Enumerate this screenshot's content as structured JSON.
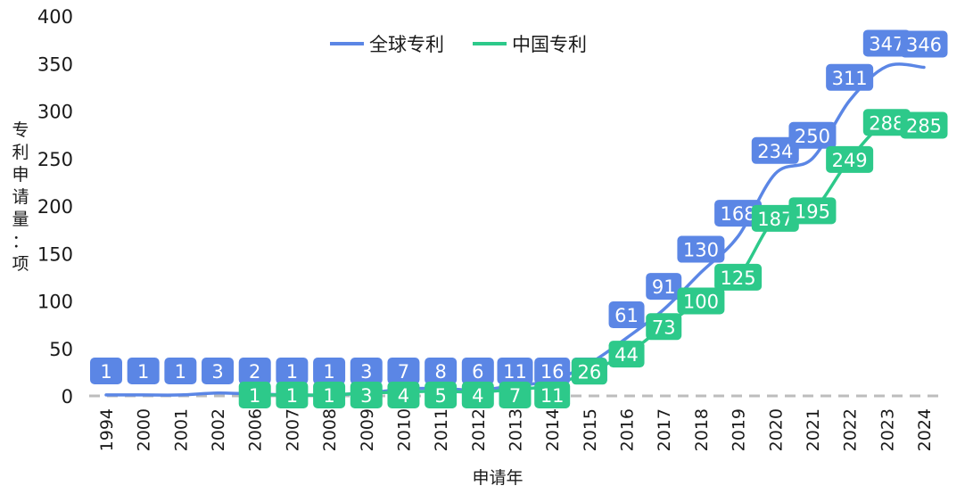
{
  "chart_data": {
    "type": "line",
    "categories": [
      "1994",
      "2000",
      "2001",
      "2002",
      "2006",
      "2007",
      "2008",
      "2009",
      "2010",
      "2011",
      "2012",
      "2013",
      "2014",
      "2015",
      "2016",
      "2017",
      "2018",
      "2019",
      "2020",
      "2021",
      "2022",
      "2023",
      "2024"
    ],
    "series": [
      {
        "name": "全球专利",
        "color": "#5b86e5",
        "values": [
          1,
          1,
          1,
          3,
          2,
          1,
          1,
          3,
          7,
          8,
          6,
          11,
          16,
          34,
          61,
          91,
          130,
          168,
          234,
          250,
          311,
          347,
          346
        ]
      },
      {
        "name": "中国专利",
        "color": "#2dc98a",
        "values": [
          null,
          null,
          null,
          null,
          1,
          1,
          1,
          3,
          4,
          5,
          4,
          7,
          11,
          26,
          44,
          73,
          100,
          125,
          187,
          195,
          249,
          288,
          285
        ]
      }
    ],
    "ylim": [
      0,
      400
    ],
    "yticks": [
      "0",
      "50",
      "100",
      "150",
      "200",
      "250",
      "300",
      "350",
      "400"
    ],
    "ylabel": "专利申请量：项",
    "xlabel": "申请年",
    "legend_position": "top-center",
    "gridline_zero": "dashed gray"
  }
}
